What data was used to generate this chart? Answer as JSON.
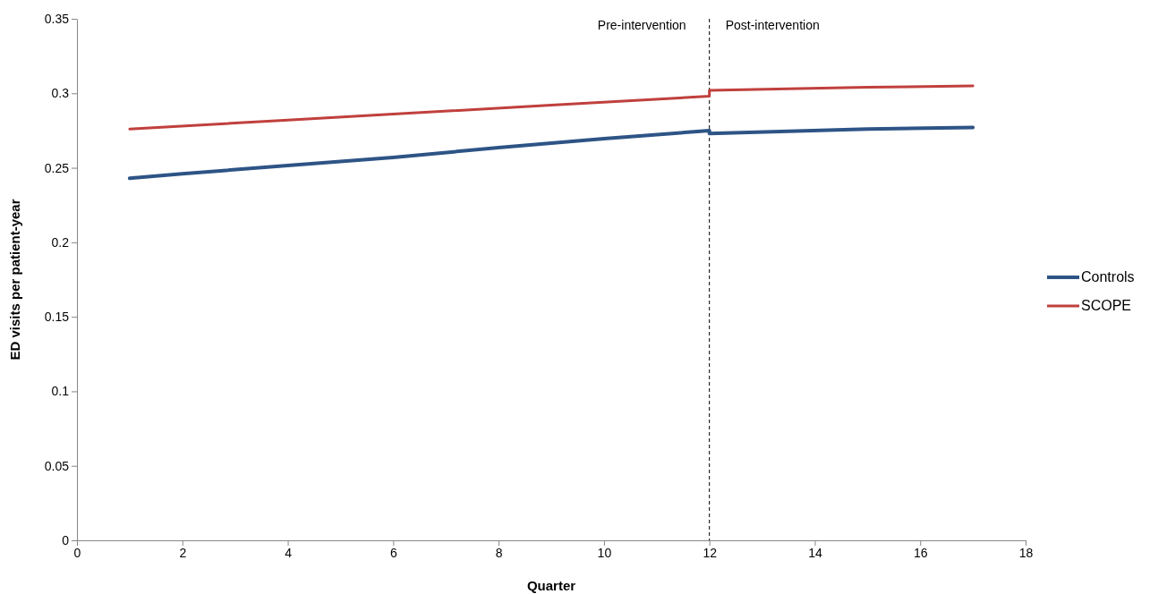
{
  "chart_data": {
    "type": "line",
    "xlabel": "Quarter",
    "ylabel": "ED visits per patient-year",
    "xlim": [
      0,
      18
    ],
    "xticks": [
      0,
      2,
      4,
      6,
      8,
      10,
      12,
      14,
      16,
      18
    ],
    "ylim": [
      0,
      0.35
    ],
    "yticks": [
      0,
      0.05,
      0.1,
      0.15,
      0.2,
      0.25,
      0.3,
      0.35
    ],
    "series": [
      {
        "name": "Controls",
        "color": "#2e5486",
        "x": [
          1,
          2,
          4,
          6,
          8,
          10,
          12,
          12,
          15,
          17
        ],
        "values": [
          0.243,
          0.246,
          0.2515,
          0.257,
          0.2635,
          0.2695,
          0.275,
          0.273,
          0.276,
          0.277
        ]
      },
      {
        "name": "SCOPE",
        "color": "#c0403d",
        "x": [
          1,
          4,
          6,
          9,
          12,
          12,
          15,
          17
        ],
        "values": [
          0.276,
          0.282,
          0.286,
          0.292,
          0.298,
          0.302,
          0.304,
          0.305
        ]
      }
    ],
    "ref_lines": [
      {
        "axis": "x",
        "value": 12,
        "color": "#000000",
        "line_style": "dashed"
      }
    ],
    "annotations": [
      "Pre-intervention",
      "Post-intervention"
    ],
    "legend": "right",
    "grid": false,
    "marker": "none",
    "line_style": "solid"
  }
}
